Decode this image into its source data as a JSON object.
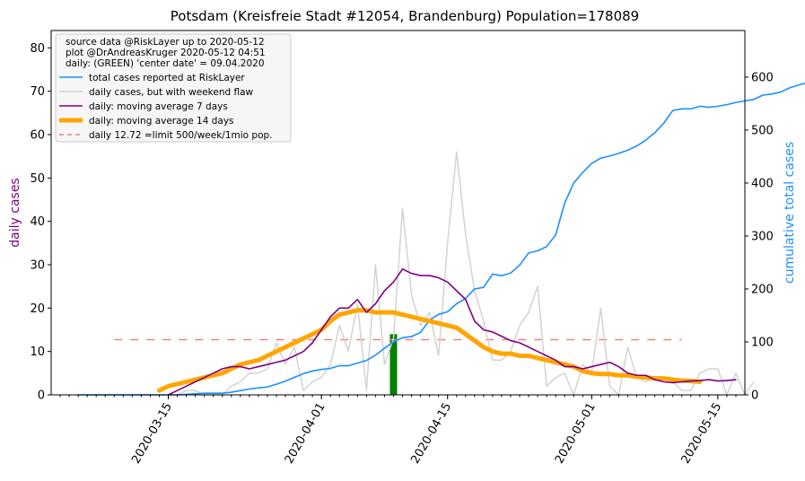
{
  "chart_data": {
    "type": "line",
    "title": "Potsdam (Kreisfreie Stadt #12054, Brandenburg) Population=178089",
    "ylabel_left": "daily cases",
    "ylabel_right": "cumulative total cases",
    "xlabel": "",
    "x_ticks": [
      "2020-03-15",
      "2020-04-01",
      "2020-04-15",
      "2020-05-01",
      "2020-05-15"
    ],
    "y_left_ticks": [
      0,
      10,
      20,
      30,
      40,
      50,
      60,
      70,
      80
    ],
    "y_right_ticks": [
      0,
      100,
      200,
      300,
      400,
      500,
      600
    ],
    "ylim_left": [
      0,
      84
    ],
    "ylim_right": [
      0,
      688
    ],
    "xlim": [
      "2020-03-02",
      "2020-05-18"
    ],
    "grid": false,
    "legend_position": "top-left",
    "legend_header": [
      "source data @RiskLayer up to 2020-05-12",
      "plot @DrAndreasKruger 2020-05-12 04:51",
      "daily: (GREEN) 'center date' = 09.04.2020"
    ],
    "colors": {
      "total": "#1e90ff",
      "daily": "#d3d3d3",
      "ma7": "#800080",
      "ma14": "#ffa500",
      "limit": "#f08080",
      "center": "#008000",
      "left_axis_label": "#800080",
      "right_axis_label": "#1e90ff"
    },
    "series": [
      {
        "name": "total cases reported at RiskLayer",
        "axis": "right",
        "start_date": "2020-03-05",
        "values": [
          0,
          0,
          0,
          0,
          0,
          0,
          0,
          0,
          0,
          0,
          0,
          0,
          1,
          2,
          3,
          3,
          3,
          5,
          8,
          11,
          13,
          15,
          20,
          26,
          33,
          40,
          45,
          48,
          50,
          55,
          55,
          60,
          65,
          75,
          88,
          100,
          108,
          110,
          118,
          141,
          152,
          157,
          172,
          182,
          200,
          203,
          228,
          225,
          230,
          245,
          268,
          272,
          280,
          302,
          362,
          400,
          420,
          437,
          447,
          451,
          456,
          462,
          470,
          481,
          495,
          513,
          537,
          540,
          540,
          545,
          543,
          545,
          548,
          552,
          555,
          558,
          566,
          568,
          572,
          580,
          585,
          590,
          592,
          596,
          598,
          600,
          602,
          605,
          610,
          612,
          617,
          622,
          627
        ]
      },
      {
        "name": "daily cases, but with weekend flaw",
        "axis": "left",
        "start_date": "2020-03-06",
        "values": [
          0,
          0,
          0,
          0,
          0,
          0,
          0,
          0,
          0,
          0,
          0,
          1,
          1,
          0,
          0,
          0,
          2,
          3,
          5,
          5,
          6,
          12,
          7,
          11,
          1,
          3,
          4,
          7,
          16,
          10,
          21,
          1,
          30,
          7,
          13,
          43,
          23,
          16,
          19,
          9,
          35,
          56,
          37,
          24,
          17,
          8,
          8,
          10,
          16,
          19,
          25,
          2,
          4,
          5,
          0,
          7,
          5,
          20,
          2,
          0,
          11,
          4,
          3,
          4,
          4,
          3,
          1,
          1,
          5,
          6,
          6,
          0,
          5,
          0,
          3
        ]
      },
      {
        "name": "daily: moving average 7 days",
        "axis": "left",
        "start_date": "2020-03-15",
        "values": [
          0,
          1,
          2,
          3,
          4,
          5,
          6,
          6.5,
          6.5,
          6,
          6.5,
          7,
          7.5,
          8,
          9,
          10,
          12,
          15,
          18,
          20,
          20,
          22,
          19,
          21,
          24,
          26,
          29,
          28,
          27.5,
          27.5,
          27,
          26,
          24,
          22,
          17,
          15,
          14.5,
          13.5,
          12.5,
          12,
          11,
          10,
          9,
          8,
          6.5,
          6.5,
          6,
          6.5,
          7,
          7.5,
          6.5,
          5,
          4.5,
          4.5,
          3.5,
          3,
          2.8,
          3,
          3.2,
          3.3,
          3.5,
          3.2,
          3.3,
          3.5
        ]
      },
      {
        "name": "daily: moving average 14 days",
        "axis": "left",
        "start_date": "2020-03-14",
        "values": [
          1,
          2,
          2.5,
          3,
          3.5,
          4,
          4.5,
          5,
          6,
          7,
          7.5,
          8,
          9,
          10,
          11,
          12,
          13,
          14,
          15,
          17,
          18.5,
          19,
          19.5,
          19.5,
          19,
          19,
          19,
          18.5,
          18,
          17.5,
          17,
          16.5,
          16,
          15.5,
          14,
          12.5,
          11,
          10,
          9.5,
          9.5,
          9,
          9,
          8.5,
          8,
          7.5,
          7,
          6.5,
          5.5,
          5,
          4.8,
          4.8,
          4.5,
          4.5,
          4.2,
          4,
          3.8,
          3.8,
          3.5,
          3.3,
          3.2,
          3
        ]
      },
      {
        "name": "daily 12.72 =limit 500/week/1mio pop.",
        "axis": "left",
        "type": "dashed_hline",
        "value": 12.72,
        "x_range": [
          "2020-03-09",
          "2020-05-11"
        ]
      }
    ],
    "center_bar": {
      "date": "2020-04-09",
      "value": 14
    }
  }
}
